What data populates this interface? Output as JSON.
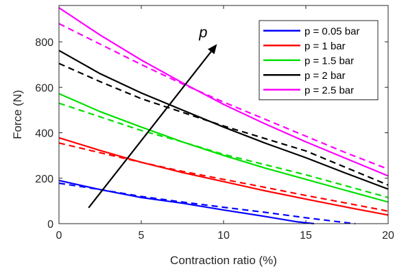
{
  "chart_data": {
    "type": "line",
    "title": "",
    "xlabel": "Contraction ratio (%)",
    "ylabel": "Force (N)",
    "xlim": [
      0,
      20
    ],
    "ylim": [
      0,
      960
    ],
    "xticks": [
      0,
      5,
      10,
      15,
      20
    ],
    "yticks": [
      0,
      200,
      400,
      600,
      800
    ],
    "grid": false,
    "legend_position": "top-right",
    "series": [
      {
        "name": "p = 0.05 bar",
        "color": "#0000ff",
        "solid": {
          "x": [
            0,
            2.5,
            5,
            7.5,
            10,
            12.5,
            14.5,
            15.5
          ],
          "y": [
            190,
            150,
            115,
            90,
            60,
            32,
            8,
            0
          ]
        },
        "dashed": {
          "x": [
            0,
            2.5,
            5,
            7.5,
            10,
            12.5,
            15,
            17.5,
            18
          ],
          "y": [
            178,
            150,
            120,
            95,
            72,
            50,
            26,
            4,
            0
          ]
        }
      },
      {
        "name": "p = 1 bar",
        "color": "#ff0000",
        "solid": {
          "x": [
            0,
            2.5,
            5,
            7.5,
            10,
            12.5,
            15,
            17.5,
            20
          ],
          "y": [
            378,
            322,
            270,
            225,
            185,
            145,
            108,
            72,
            38
          ]
        },
        "dashed": {
          "x": [
            0,
            2.5,
            5,
            7.5,
            10,
            12.5,
            15,
            17.5,
            20
          ],
          "y": [
            355,
            312,
            270,
            230,
            195,
            160,
            124,
            90,
            55
          ]
        }
      },
      {
        "name": "p = 1.5 bar",
        "color": "#00e000",
        "solid": {
          "x": [
            0,
            2.5,
            5,
            7.5,
            10,
            12.5,
            15,
            17.5,
            20
          ],
          "y": [
            572,
            493,
            425,
            360,
            300,
            245,
            195,
            145,
            95
          ]
        },
        "dashed": {
          "x": [
            0,
            2.5,
            5,
            7.5,
            10,
            12.5,
            15,
            17.5,
            20
          ],
          "y": [
            530,
            470,
            410,
            360,
            305,
            260,
            215,
            165,
            115
          ]
        }
      },
      {
        "name": "p = 2 bar",
        "color": "#000000",
        "solid": {
          "x": [
            0,
            2.5,
            5,
            7.5,
            10,
            12.5,
            15,
            17.5,
            20
          ],
          "y": [
            762,
            660,
            575,
            500,
            425,
            355,
            290,
            220,
            152
          ]
        },
        "dashed": {
          "x": [
            0,
            2.5,
            5,
            7.5,
            10,
            12.5,
            15,
            17.5,
            20
          ],
          "y": [
            705,
            625,
            550,
            490,
            430,
            375,
            320,
            245,
            170
          ]
        }
      },
      {
        "name": "p = 2.5 bar",
        "color": "#ff00ff",
        "solid": {
          "x": [
            0,
            2.5,
            5,
            7.5,
            10,
            12.5,
            15,
            17.5,
            20
          ],
          "y": [
            950,
            830,
            720,
            620,
            525,
            440,
            360,
            285,
            210
          ]
        },
        "dashed": {
          "x": [
            0,
            2.5,
            5,
            7.5,
            10,
            12.5,
            15,
            17.5,
            20
          ],
          "y": [
            880,
            790,
            700,
            615,
            535,
            460,
            385,
            310,
            240
          ]
        }
      }
    ],
    "annotations": [
      {
        "text": "p",
        "arrow_from": {
          "x": 1.8,
          "y": 70
        },
        "arrow_to": {
          "x": 9.6,
          "y": 790
        }
      }
    ]
  }
}
